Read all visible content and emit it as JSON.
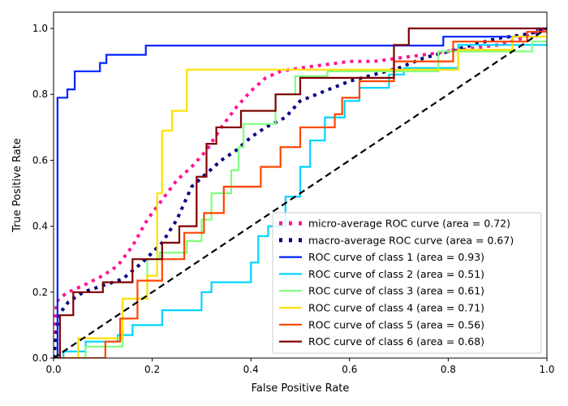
{
  "chart_data": {
    "type": "line",
    "title": "",
    "xlabel": "False Positive Rate",
    "ylabel": "True Positive Rate",
    "xlim": [
      0.0,
      1.0
    ],
    "ylim": [
      0.0,
      1.05
    ],
    "xticks": [
      "0.0",
      "0.2",
      "0.4",
      "0.6",
      "0.8",
      "1.0"
    ],
    "yticks": [
      "0.0",
      "0.2",
      "0.4",
      "0.6",
      "0.8",
      "1.0"
    ],
    "xtick_values": [
      0,
      0.2,
      0.4,
      0.6,
      0.8,
      1.0
    ],
    "ytick_values": [
      0,
      0.2,
      0.4,
      0.6,
      0.8,
      1.0
    ],
    "grid": false,
    "legend_position": "lower-right",
    "series": [
      {
        "name": "micro-average ROC curve (area = 0.72)",
        "color": "#ff1493",
        "style": "dotted",
        "x": [
          0,
          0.005,
          0.01,
          0.03,
          0.06,
          0.1,
          0.13,
          0.16,
          0.19,
          0.22,
          0.25,
          0.28,
          0.31,
          0.34,
          0.37,
          0.4,
          0.43,
          0.46,
          0.5,
          0.55,
          0.6,
          0.65,
          0.7,
          0.75,
          0.8,
          0.85,
          0.9,
          0.95,
          0.98,
          1.0
        ],
        "y": [
          0,
          0.15,
          0.18,
          0.2,
          0.22,
          0.25,
          0.28,
          0.34,
          0.42,
          0.48,
          0.54,
          0.58,
          0.63,
          0.7,
          0.76,
          0.81,
          0.85,
          0.87,
          0.88,
          0.89,
          0.9,
          0.9,
          0.91,
          0.92,
          0.93,
          0.94,
          0.95,
          0.97,
          0.99,
          1.0
        ]
      },
      {
        "name": "macro-average ROC curve (area = 0.67)",
        "color": "#000080",
        "style": "dotted",
        "x": [
          0,
          0.005,
          0.01,
          0.03,
          0.06,
          0.1,
          0.14,
          0.18,
          0.22,
          0.25,
          0.28,
          0.31,
          0.34,
          0.37,
          0.4,
          0.43,
          0.47,
          0.5,
          0.55,
          0.6,
          0.65,
          0.7,
          0.75,
          0.8,
          0.85,
          0.9,
          0.95,
          0.98,
          1.0
        ],
        "y": [
          0,
          0.06,
          0.13,
          0.17,
          0.2,
          0.22,
          0.24,
          0.29,
          0.35,
          0.42,
          0.52,
          0.56,
          0.6,
          0.63,
          0.67,
          0.7,
          0.73,
          0.78,
          0.81,
          0.84,
          0.86,
          0.88,
          0.91,
          0.93,
          0.95,
          0.97,
          0.98,
          0.99,
          1.0
        ]
      },
      {
        "name": "ROC curve of class 1 (area = 0.93)",
        "color": "#0022ff",
        "style": "solid",
        "step": true,
        "x": [
          0,
          0.008,
          0.008,
          0.028,
          0.028,
          0.043,
          0.043,
          0.094,
          0.094,
          0.107,
          0.107,
          0.187,
          0.187,
          0.79,
          0.79,
          0.98,
          0.98,
          1.0
        ],
        "y": [
          0,
          0,
          0.79,
          0.79,
          0.815,
          0.815,
          0.87,
          0.87,
          0.895,
          0.895,
          0.92,
          0.92,
          0.948,
          0.948,
          0.975,
          0.975,
          1.0,
          1.0
        ]
      },
      {
        "name": "ROC curve of class 2 (area = 0.51)",
        "color": "#00d4ff",
        "style": "solid",
        "step": true,
        "x": [
          0,
          0.02,
          0.02,
          0.065,
          0.065,
          0.13,
          0.13,
          0.16,
          0.16,
          0.22,
          0.22,
          0.3,
          0.3,
          0.32,
          0.32,
          0.4,
          0.4,
          0.415,
          0.415,
          0.435,
          0.435,
          0.47,
          0.47,
          0.5,
          0.5,
          0.52,
          0.52,
          0.55,
          0.55,
          0.59,
          0.59,
          0.62,
          0.62,
          0.68,
          0.68,
          0.71,
          0.71,
          0.82,
          0.82,
          1.0
        ],
        "y": [
          0,
          0,
          0.02,
          0.02,
          0.05,
          0.05,
          0.07,
          0.07,
          0.1,
          0.1,
          0.145,
          0.145,
          0.2,
          0.2,
          0.23,
          0.23,
          0.29,
          0.29,
          0.37,
          0.37,
          0.4,
          0.4,
          0.49,
          0.49,
          0.58,
          0.58,
          0.66,
          0.66,
          0.73,
          0.73,
          0.78,
          0.78,
          0.82,
          0.82,
          0.86,
          0.86,
          0.88,
          0.88,
          0.95,
          0.95
        ]
      },
      {
        "name": "ROC curve of class 3 (area = 0.61)",
        "color": "#7fff7f",
        "style": "solid",
        "step": true,
        "x": [
          0,
          0.065,
          0.065,
          0.14,
          0.14,
          0.19,
          0.19,
          0.215,
          0.215,
          0.27,
          0.27,
          0.3,
          0.3,
          0.32,
          0.32,
          0.36,
          0.36,
          0.375,
          0.375,
          0.385,
          0.385,
          0.45,
          0.45,
          0.49,
          0.49,
          0.555,
          0.555,
          0.78,
          0.78,
          0.97,
          0.97,
          1.0
        ],
        "y": [
          0,
          0,
          0.035,
          0.035,
          0.18,
          0.18,
          0.3,
          0.3,
          0.32,
          0.32,
          0.355,
          0.355,
          0.42,
          0.42,
          0.5,
          0.5,
          0.57,
          0.57,
          0.64,
          0.64,
          0.71,
          0.71,
          0.8,
          0.8,
          0.855,
          0.855,
          0.87,
          0.87,
          0.93,
          0.93,
          0.96,
          0.96
        ]
      },
      {
        "name": "ROC curve of class 4 (area = 0.71)",
        "color": "#ffe000",
        "style": "solid",
        "step": true,
        "x": [
          0,
          0.05,
          0.05,
          0.14,
          0.14,
          0.19,
          0.19,
          0.21,
          0.21,
          0.22,
          0.22,
          0.24,
          0.24,
          0.27,
          0.27,
          0.82,
          0.82,
          0.93,
          0.93,
          1.0
        ],
        "y": [
          0,
          0,
          0.06,
          0.06,
          0.18,
          0.18,
          0.25,
          0.25,
          0.5,
          0.5,
          0.69,
          0.69,
          0.75,
          0.75,
          0.875,
          0.875,
          0.935,
          0.935,
          0.975,
          0.975
        ]
      },
      {
        "name": "ROC curve of class 5 (area = 0.56)",
        "color": "#ff4500",
        "style": "solid",
        "step": true,
        "x": [
          0,
          0.105,
          0.105,
          0.135,
          0.135,
          0.17,
          0.17,
          0.22,
          0.22,
          0.265,
          0.265,
          0.305,
          0.305,
          0.345,
          0.345,
          0.42,
          0.42,
          0.46,
          0.46,
          0.5,
          0.5,
          0.57,
          0.57,
          0.585,
          0.585,
          0.62,
          0.62,
          0.69,
          0.69,
          0.81,
          0.81,
          0.96,
          0.96,
          1.0
        ],
        "y": [
          0,
          0,
          0.05,
          0.05,
          0.12,
          0.12,
          0.235,
          0.235,
          0.3,
          0.3,
          0.38,
          0.38,
          0.44,
          0.44,
          0.52,
          0.52,
          0.58,
          0.58,
          0.64,
          0.64,
          0.7,
          0.7,
          0.74,
          0.74,
          0.79,
          0.79,
          0.84,
          0.84,
          0.9,
          0.9,
          0.96,
          0.96,
          0.99,
          0.99
        ]
      },
      {
        "name": "ROC curve of class 6 (area = 0.68)",
        "color": "#800000",
        "style": "solid",
        "step": true,
        "x": [
          0,
          0.013,
          0.013,
          0.04,
          0.04,
          0.1,
          0.1,
          0.16,
          0.16,
          0.22,
          0.22,
          0.255,
          0.255,
          0.29,
          0.29,
          0.31,
          0.31,
          0.33,
          0.33,
          0.38,
          0.38,
          0.45,
          0.45,
          0.5,
          0.5,
          0.69,
          0.69,
          0.72,
          0.72,
          1.0
        ],
        "y": [
          0,
          0,
          0.13,
          0.13,
          0.2,
          0.2,
          0.23,
          0.23,
          0.3,
          0.3,
          0.35,
          0.35,
          0.4,
          0.4,
          0.55,
          0.55,
          0.65,
          0.65,
          0.7,
          0.7,
          0.75,
          0.75,
          0.8,
          0.8,
          0.85,
          0.85,
          0.95,
          0.95,
          1.0,
          1.0
        ]
      }
    ],
    "reference_line": {
      "x": [
        0,
        1
      ],
      "y": [
        0,
        1
      ],
      "color": "#000000",
      "style": "dashed"
    }
  }
}
